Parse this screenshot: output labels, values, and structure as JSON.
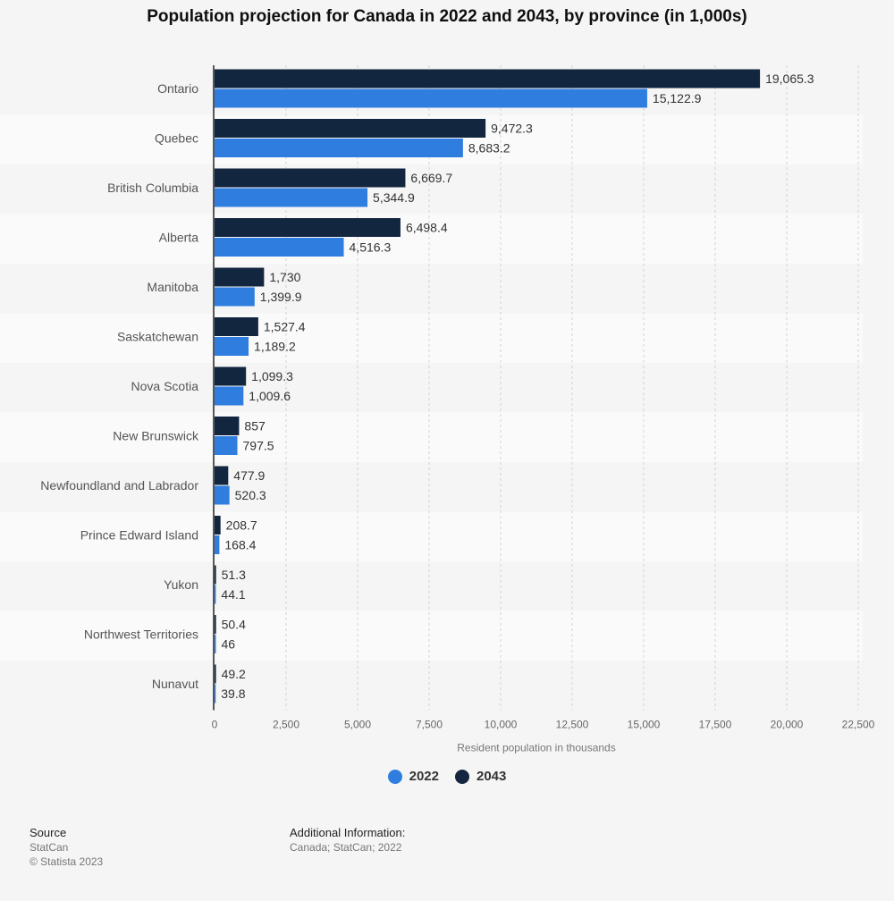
{
  "title": "Population projection for Canada in 2022 and 2043, by province (in 1,000s)",
  "legend": [
    {
      "label": "2022",
      "color": "#2f7ddf"
    },
    {
      "label": "2043",
      "color": "#13263f"
    }
  ],
  "footer": {
    "source_heading": "Source",
    "source_lines": [
      "StatCan",
      "© Statista 2023"
    ],
    "info_heading": "Additional Information:",
    "info_text": "Canada; StatCan; 2022"
  },
  "chart_data": {
    "type": "bar",
    "orientation": "horizontal",
    "categories": [
      "Ontario",
      "Quebec",
      "British Columbia",
      "Alberta",
      "Manitoba",
      "Saskatchewan",
      "Nova Scotia",
      "New Brunswick",
      "Newfoundland and Labrador",
      "Prince Edward Island",
      "Yukon",
      "Northwest Territories",
      "Nunavut"
    ],
    "series": [
      {
        "name": "2043",
        "color": "#13263f",
        "values": [
          19065.3,
          9472.3,
          6669.7,
          6498.4,
          1730,
          1527.4,
          1099.3,
          857,
          477.9,
          208.7,
          51.3,
          50.4,
          49.2
        ],
        "labels": [
          "19,065.3",
          "9,472.3",
          "6,669.7",
          "6,498.4",
          "1,730",
          "1,527.4",
          "1,099.3",
          "857",
          "477.9",
          "208.7",
          "51.3",
          "50.4",
          "49.2"
        ]
      },
      {
        "name": "2022",
        "color": "#2f7ddf",
        "values": [
          15122.9,
          8683.2,
          5344.9,
          4516.3,
          1399.9,
          1189.2,
          1009.6,
          797.5,
          520.3,
          168.4,
          44.1,
          46,
          39.8
        ],
        "labels": [
          "15,122.9",
          "8,683.2",
          "5,344.9",
          "4,516.3",
          "1,399.9",
          "1,189.2",
          "1,009.6",
          "797.5",
          "520.3",
          "168.4",
          "44.1",
          "46",
          "39.8"
        ]
      }
    ],
    "xlabel": "Resident population in thousands",
    "xlim": [
      0,
      22500
    ],
    "xticks": [
      0,
      2500,
      5000,
      7500,
      10000,
      12500,
      15000,
      17500,
      20000,
      22500
    ],
    "xtick_labels": [
      "0",
      "2,500",
      "5,000",
      "7,500",
      "10,000",
      "12,500",
      "15,000",
      "17,500",
      "20,000",
      "22,500"
    ],
    "grid": true,
    "legend_position": "bottom-center"
  }
}
